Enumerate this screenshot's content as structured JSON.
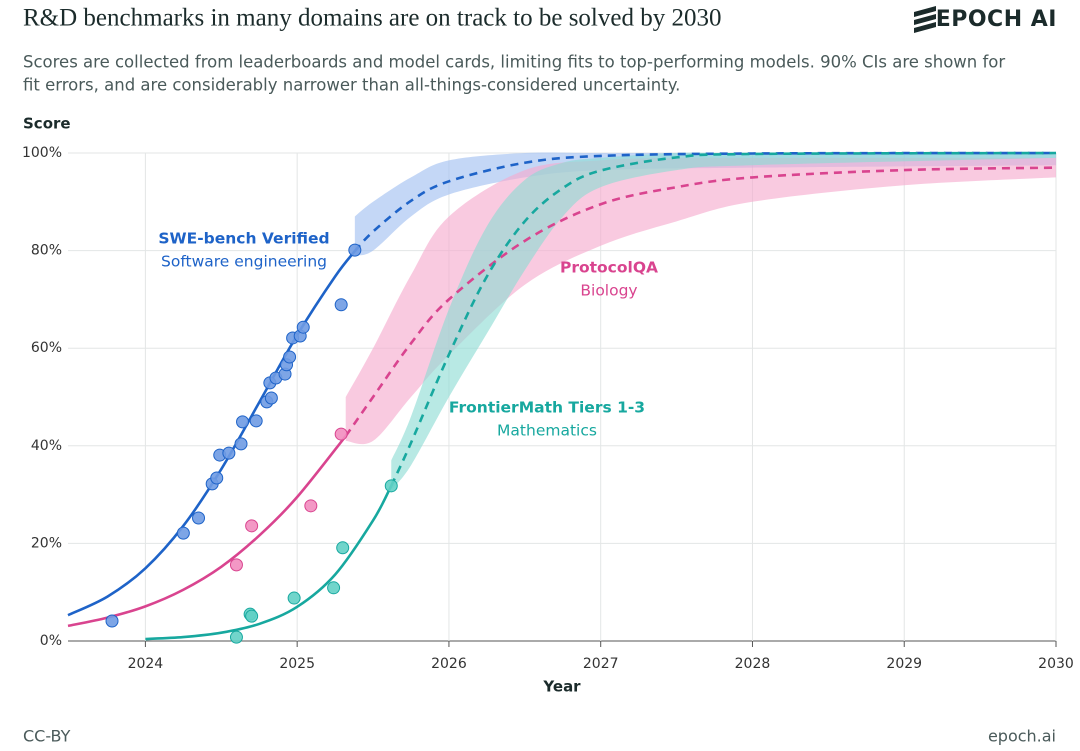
{
  "chart_data": {
    "type": "scatter",
    "title": "R&D benchmarks in many domains are on track to be solved by 2030",
    "logo": "EPOCH AI",
    "subtitle": [
      "Scores are collected from leaderboards and model cards, limiting fits to top-performing models. 90% CIs are shown for",
      "fit errors, and are considerably narrower than all-things-considered uncertainty."
    ],
    "y_label": "Score",
    "x_label": "Year",
    "footer_left": "CC-BY",
    "footer_right": "epoch.ai",
    "xlim": [
      2023.49,
      2030
    ],
    "xticks": [
      2024,
      2025,
      2026,
      2027,
      2028,
      2029,
      2030
    ],
    "ylim": [
      0,
      100
    ],
    "yticks": [
      {
        "value": 0,
        "label": "0%"
      },
      {
        "value": 20,
        "label": "20%"
      },
      {
        "value": 40,
        "label": "40%"
      },
      {
        "value": 60,
        "label": "60%"
      },
      {
        "value": 80,
        "label": "80%"
      },
      {
        "value": 100,
        "label": "100%"
      }
    ],
    "grid": true,
    "series": [
      {
        "name": "SWE-bench Verified",
        "label": "Software engineering",
        "color": "#1e63c8",
        "point_color": "#6f9be3",
        "band_color": "#9fbff0",
        "x": [
          2023.78,
          2024.25,
          2024.35,
          2024.44,
          2024.47,
          2024.49,
          2024.55,
          2024.63,
          2024.64,
          2024.73,
          2024.8,
          2024.83,
          2024.82,
          2024.86,
          2024.92,
          2024.93,
          2024.95,
          2024.97,
          2025.02,
          2025.04,
          2025.29,
          2025.38
        ],
        "values": [
          4.1,
          22.1,
          25.2,
          32.2,
          33.4,
          38.1,
          38.5,
          40.4,
          44.9,
          45.1,
          49.0,
          49.8,
          52.9,
          53.9,
          54.7,
          56.6,
          58.2,
          62.1,
          62.5,
          64.3,
          68.9,
          80.1
        ],
        "fit": {
          "x": [
            2023.49,
            2023.75,
            2024.0,
            2024.25,
            2024.5,
            2024.75,
            2025.0,
            2025.25,
            2025.38
          ],
          "values": [
            5.3,
            9.1,
            14.9,
            23.6,
            35.2,
            48.9,
            62.7,
            74.7,
            79.9
          ]
        },
        "projection": {
          "x": [
            2025.38,
            2025.5,
            2025.75,
            2026.0,
            2026.5,
            2027.0,
            2028.0,
            2030.0
          ],
          "values": [
            79.9,
            83.9,
            90.2,
            94.2,
            98.0,
            99.4,
            99.9,
            100
          ],
          "lower": [
            79,
            80,
            87,
            91.5,
            95,
            96.5,
            97,
            97.5
          ],
          "upper": [
            87,
            90,
            95,
            98.5,
            100,
            100,
            100,
            100
          ]
        }
      },
      {
        "name": "ProtocolQA",
        "label": "Biology",
        "color": "#d9448f",
        "point_color": "#f28dbf",
        "band_color": "#f5a9cd",
        "x": [
          2024.6,
          2024.7,
          2025.09,
          2025.29
        ],
        "values": [
          15.6,
          23.6,
          27.7,
          42.4
        ],
        "fit": {
          "x": [
            2023.49,
            2023.75,
            2024.0,
            2024.25,
            2024.5,
            2024.75,
            2025.0,
            2025.32
          ],
          "values": [
            3.1,
            4.8,
            7.1,
            10.5,
            15.2,
            21.6,
            29.5,
            42
          ]
        },
        "projection": {
          "x": [
            2025.32,
            2025.5,
            2025.75,
            2026.0,
            2026.5,
            2027.0,
            2027.5,
            2028.0,
            2029.0,
            2030.0
          ],
          "values": [
            42,
            50,
            61,
            70,
            82,
            89.5,
            93,
            95,
            96.5,
            97
          ],
          "lower": [
            41,
            41,
            50,
            58.6,
            73,
            81,
            86,
            90,
            93.4,
            95
          ],
          "upper": [
            50,
            60,
            75,
            87,
            96.5,
            98.5,
            99,
            99,
            99,
            99
          ]
        }
      },
      {
        "name": "FrontierMath Tiers 1-3",
        "label": "Mathematics",
        "color": "#17a89f",
        "point_color": "#62d0c5",
        "band_color": "#8cdcd3",
        "x": [
          2024.6,
          2024.69,
          2024.7,
          2024.98,
          2025.24,
          2025.3,
          2025.62
        ],
        "values": [
          0.8,
          5.5,
          5.1,
          8.8,
          10.9,
          19.1,
          31.8
        ],
        "fit": {
          "x": [
            2024.0,
            2024.25,
            2024.5,
            2024.75,
            2025.0,
            2025.25,
            2025.5,
            2025.62
          ],
          "values": [
            0.4,
            0.8,
            1.7,
            3.5,
            7.0,
            13.6,
            24.7,
            31.8
          ]
        },
        "projection": {
          "x": [
            2025.62,
            2025.75,
            2026.0,
            2026.25,
            2026.5,
            2026.75,
            2027.0,
            2027.5,
            2028.0,
            2030.0
          ],
          "values": [
            31.8,
            40.6,
            58.7,
            74.7,
            86.0,
            92.8,
            96.4,
            99.1,
            99.8,
            100
          ],
          "lower": [
            31,
            36,
            50,
            63,
            76,
            87,
            93,
            96.5,
            97.5,
            99
          ],
          "upper": [
            37,
            46,
            68,
            85,
            94.5,
            98,
            99,
            100,
            100,
            100
          ]
        }
      }
    ]
  }
}
